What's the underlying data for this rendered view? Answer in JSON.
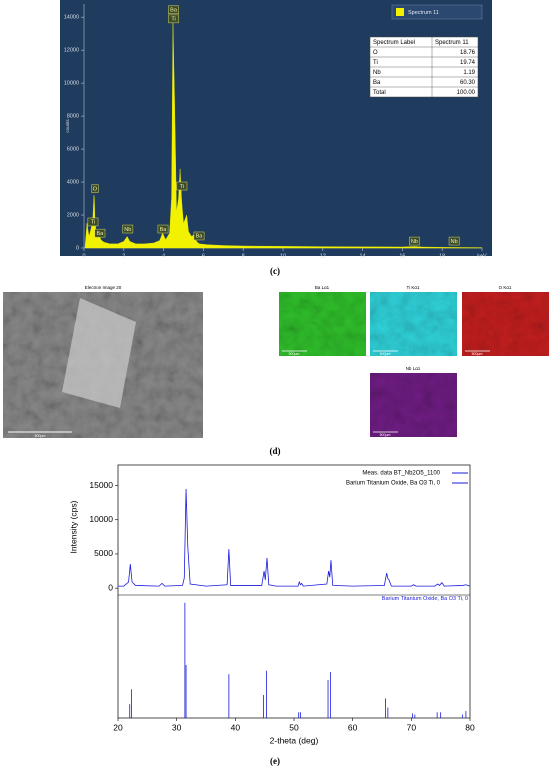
{
  "chart_data": [
    {
      "type": "area",
      "color": "#f2f200",
      "legend": "Spectrum 11",
      "ylabel": "counts",
      "xlim": [
        0,
        20
      ],
      "ylim": [
        0,
        14800
      ],
      "xticks": [
        0,
        2,
        4,
        6,
        8,
        10,
        12,
        14,
        16,
        18,
        {
          "value": 20,
          "label": "keV"
        }
      ],
      "yticks": [
        0,
        2000,
        4000,
        6000,
        8000,
        10000,
        12000,
        14000
      ],
      "x": [
        0.05,
        0.15,
        0.25,
        0.3,
        0.4,
        0.45,
        0.5,
        0.52,
        0.55,
        0.65,
        0.78,
        0.85,
        1.0,
        1.3,
        1.7,
        2.0,
        2.17,
        2.3,
        2.6,
        3.0,
        3.5,
        3.8,
        3.95,
        4.1,
        4.3,
        4.4,
        4.47,
        4.55,
        4.65,
        4.75,
        4.83,
        4.9,
        4.93,
        5.0,
        5.1,
        5.16,
        5.25,
        5.4,
        5.53,
        5.65,
        5.8,
        6.2,
        7,
        8,
        10,
        12,
        14,
        16,
        16.6,
        17,
        18,
        20
      ],
      "values": [
        0,
        1500,
        700,
        900,
        1400,
        1900,
        3200,
        3000,
        1600,
        600,
        700,
        500,
        350,
        250,
        250,
        400,
        700,
        400,
        250,
        250,
        300,
        450,
        900,
        500,
        900,
        3000,
        13800,
        9000,
        2200,
        3000,
        4800,
        3000,
        2500,
        1500,
        1800,
        2000,
        1000,
        700,
        800,
        400,
        250,
        200,
        150,
        120,
        100,
        80,
        70,
        60,
        90,
        60,
        40,
        20
      ],
      "annotations": [
        {
          "text": "O",
          "x": 0.55,
          "y": 3600
        },
        {
          "text": "Ti",
          "x": 0.45,
          "y": 1580
        },
        {
          "text": "Ba",
          "x": 0.8,
          "y": 900
        },
        {
          "text": "Nb",
          "x": 2.2,
          "y": 1150
        },
        {
          "text": "Ba",
          "x": 3.97,
          "y": 1150
        },
        {
          "text": "Ba",
          "x": 4.5,
          "y": 14450
        },
        {
          "text": "Ti",
          "x": 4.5,
          "y": 13900
        },
        {
          "text": "Ti",
          "x": 4.92,
          "y": 3760
        },
        {
          "text": "Ba",
          "x": 5.78,
          "y": 730
        },
        {
          "text": "Nb",
          "x": 16.6,
          "y": 420
        },
        {
          "text": "Nb",
          "x": 18.6,
          "y": 420
        }
      ],
      "table": {
        "header": [
          "Spectrum Label",
          "Spectrum 11"
        ],
        "rows": [
          [
            "O",
            "18.76"
          ],
          [
            "Ti",
            "19.74"
          ],
          [
            "Nb",
            "1.19"
          ],
          [
            "Ba",
            "60.30"
          ],
          [
            "Total",
            "100.00"
          ]
        ]
      }
    },
    {
      "type": "line",
      "xlabel": "2-theta (deg)",
      "ylabel": "Intensity (cps)",
      "xlim": [
        20,
        80
      ],
      "ylim": [
        -1000,
        18000
      ],
      "y2lim": [
        0,
        105
      ],
      "xticks": [
        20,
        30,
        40,
        50,
        60,
        70,
        80
      ],
      "yticks": [
        0,
        5000,
        10000,
        15000
      ],
      "series": [
        {
          "name": "Meas. data BT_Nb2O5_1100",
          "color": "#1a1adc",
          "x": [
            20,
            21,
            21.8,
            22.1,
            22.4,
            23,
            27,
            27.5,
            28,
            31,
            31.3,
            31.6,
            31.9,
            32.3,
            35,
            38.6,
            38.9,
            39.2,
            44.5,
            44.9,
            45.1,
            45.4,
            45.7,
            47,
            50.7,
            50.9,
            51.1,
            51.3,
            51.6,
            55.6,
            55.9,
            56.1,
            56.3,
            56.6,
            60,
            65.4,
            65.8,
            66.0,
            66.2,
            66.6,
            70,
            70.4,
            70.8,
            74,
            74.5,
            74.8,
            75.2,
            75.6,
            78.8,
            79.3,
            80
          ],
          "values": [
            300,
            300,
            900,
            3500,
            900,
            400,
            300,
            700,
            300,
            400,
            1500,
            14500,
            6000,
            600,
            300,
            500,
            5700,
            400,
            400,
            2500,
            1200,
            4400,
            500,
            300,
            300,
            900,
            500,
            700,
            300,
            600,
            2500,
            1600,
            4100,
            400,
            300,
            400,
            2200,
            1400,
            1200,
            300,
            300,
            500,
            300,
            300,
            600,
            400,
            800,
            300,
            400,
            500,
            300
          ]
        },
        {
          "name": "Barium Titanium Oxide, Ba O3 Ti, 0",
          "color": "#1a1adc",
          "axis": "y2",
          "style": "stick",
          "x": [
            22.0,
            22.3,
            31.4,
            31.6,
            38.9,
            44.8,
            45.3,
            50.8,
            51.1,
            55.8,
            56.2,
            65.6,
            66.0,
            70.2,
            70.6,
            74.4,
            75.0,
            78.7,
            79.3
          ],
          "values": [
            12,
            25,
            100,
            46,
            38,
            20,
            41,
            5,
            5,
            33,
            40,
            17,
            9,
            4,
            3,
            5,
            5,
            3,
            6
          ]
        }
      ]
    }
  ],
  "panel_labels": [
    "(c)",
    "(d)",
    "(e)"
  ],
  "images": {
    "sem": {
      "title": "Electron Image 20",
      "scale": "500µm"
    },
    "maps": [
      {
        "title": "Ba Lα1",
        "scale": "500µm",
        "color": "#2fbf2a"
      },
      {
        "title": "Ti Kα1",
        "scale": "500µm",
        "color": "#2fd2da"
      },
      {
        "title": "O Kα1",
        "scale": "500µm",
        "color": "#c41e1e"
      },
      {
        "title": "Nb Lα1",
        "scale": "500µm",
        "color": "#6e1c82"
      }
    ]
  }
}
